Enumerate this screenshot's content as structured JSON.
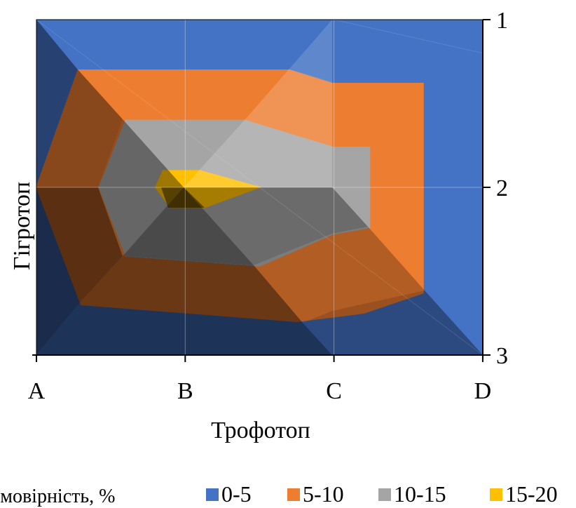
{
  "chart_data": {
    "type": "heatmap",
    "title": "",
    "xlabel": "Трофотоп",
    "ylabel": "Гігротоп",
    "x_ticks": [
      "A",
      "B",
      "C",
      "D"
    ],
    "y_ticks": [
      "1",
      "2",
      "3"
    ],
    "legend": {
      "title": "Ймовірність, %",
      "position": "bottom",
      "entries": [
        {
          "label": "0-5",
          "color": "#4472c4"
        },
        {
          "label": "5-10",
          "color": "#ed7d31"
        },
        {
          "label": "10-15",
          "color": "#a5a5a5"
        },
        {
          "label": "15-20",
          "color": "#ffc000"
        }
      ]
    },
    "bands": [
      {
        "label": "0-5",
        "color": "#4472c4",
        "polygon": [
          [
            "A",
            1
          ],
          [
            "D",
            1
          ],
          [
            "D",
            3
          ],
          [
            "A",
            3
          ]
        ]
      },
      {
        "label": "5-10",
        "color": "#ed7d31",
        "polygon": [
          [
            0.28,
            1.3
          ],
          [
            1.7,
            1.3
          ],
          [
            1.99,
            1.38
          ],
          [
            2.6,
            1.38
          ],
          [
            2.6,
            2.63
          ],
          [
            2.2,
            2.75
          ],
          [
            1.75,
            2.8
          ],
          [
            0.3,
            2.7
          ],
          [
            0.0,
            2.0
          ]
        ]
      },
      {
        "label": "10-15",
        "color": "#a5a5a5",
        "polygon": [
          [
            0.6,
            1.6
          ],
          [
            1.4,
            1.6
          ],
          [
            1.99,
            1.76
          ],
          [
            2.24,
            1.76
          ],
          [
            2.24,
            2.24
          ],
          [
            1.99,
            2.28
          ],
          [
            1.5,
            2.47
          ],
          [
            0.6,
            2.41
          ],
          [
            0.42,
            2.0
          ]
        ]
      },
      {
        "label": "15-20",
        "color": "#ffc000",
        "polygon": [
          [
            0.85,
            1.9
          ],
          [
            1.1,
            1.9
          ],
          [
            1.5,
            2.0
          ],
          [
            1.13,
            2.12
          ],
          [
            0.9,
            2.12
          ],
          [
            0.8,
            2.0
          ]
        ]
      }
    ]
  }
}
